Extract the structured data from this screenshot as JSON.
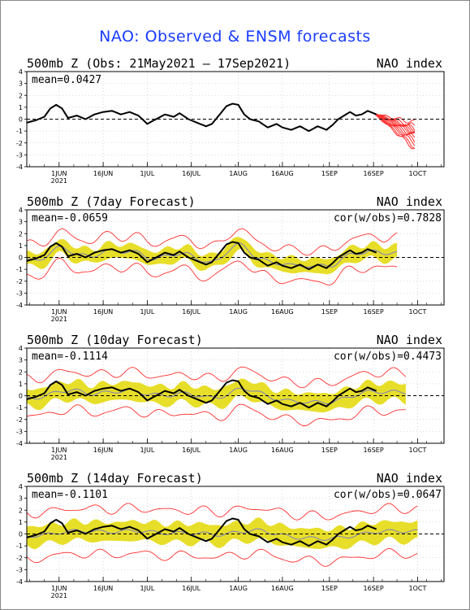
{
  "title": "NAO: Observed & ENSM forecasts",
  "colors": {
    "title": "#1a3cff",
    "observed": "#000000",
    "members": "#ff3030",
    "spread": "#e6dc1e",
    "ens_mean": "#8080c0"
  },
  "chart_data": [
    {
      "type": "line",
      "name": "observed",
      "title_left": "500mb Z (Obs: 21May2021 – 17Sep2021)",
      "title_right": "NAO index",
      "mean_label": "mean=0.0427",
      "cor_label": "",
      "ylim": [
        -4,
        4
      ],
      "yticks": [
        "4",
        "3",
        "2",
        "1",
        "0",
        "-1",
        "-2",
        "-3",
        "-4"
      ],
      "xlim": [
        0,
        142
      ],
      "xtick_labels": [
        "1JUN",
        "16JUN",
        "1JUL",
        "16JUL",
        "1AUG",
        "16AUG",
        "1SEP",
        "16SEP",
        "1OCT"
      ],
      "xtick_pos": [
        11,
        26,
        41,
        56,
        72,
        87,
        103,
        118,
        133
      ],
      "year_label": "2021",
      "observed": {
        "x": [
          0,
          3,
          6,
          8,
          10,
          12,
          14,
          17,
          20,
          23,
          26,
          29,
          32,
          35,
          38,
          41,
          44,
          47,
          50,
          52,
          55,
          58,
          61,
          63,
          66,
          68,
          70,
          72,
          74,
          76,
          79,
          82,
          85,
          87,
          90,
          93,
          96,
          99,
          102,
          104,
          106,
          108,
          110,
          112,
          114,
          116,
          119
        ],
        "y": [
          -0.3,
          -0.1,
          0.2,
          0.9,
          1.2,
          0.9,
          0.1,
          0.3,
          0.0,
          0.4,
          0.6,
          0.7,
          0.4,
          0.6,
          0.3,
          -0.4,
          0.0,
          0.4,
          0.2,
          0.5,
          0.0,
          -0.3,
          -0.6,
          -0.4,
          0.5,
          1.1,
          1.3,
          1.2,
          0.4,
          0.0,
          -0.2,
          -0.7,
          -0.4,
          -0.7,
          -0.9,
          -0.6,
          -1.0,
          -0.6,
          -0.9,
          -0.5,
          0.0,
          0.3,
          0.6,
          0.3,
          0.4,
          0.7,
          0.4
        ]
      },
      "members_start": 118,
      "members_end": 132,
      "members_end_values": [
        -0.3,
        -0.6,
        -0.8,
        -0.9,
        -1.0,
        -1.1,
        -1.2,
        -1.4,
        -1.6,
        -1.8,
        -2.0,
        -2.3,
        -2.5
      ]
    },
    {
      "type": "line",
      "name": "7day",
      "title_left": "500mb Z (7day Forecast)",
      "title_right": "NAO index",
      "mean_label": "mean=-0.0659",
      "cor_label": "cor(w/obs)=0.7828",
      "ylim": [
        -4,
        4
      ],
      "yticks": [
        "4",
        "3",
        "2",
        "1",
        "0",
        "-1",
        "-2",
        "-3",
        "-4"
      ],
      "xlim": [
        0,
        142
      ],
      "xtick_labels": [
        "1JUN",
        "16JUN",
        "1JUL",
        "16JUL",
        "1AUG",
        "16AUG",
        "1SEP",
        "16SEP",
        "1OCT"
      ],
      "xtick_pos": [
        11,
        26,
        41,
        56,
        72,
        87,
        103,
        118,
        133
      ],
      "year_label": "2021",
      "obs_end": 119,
      "forecast_end": 126,
      "spread_width": 0.6,
      "red_width": 1.3,
      "lag": 2,
      "smooth": 0.85
    },
    {
      "type": "line",
      "name": "10day",
      "title_left": "500mb Z (10day Forecast)",
      "title_right": "NAO index",
      "mean_label": "mean=-0.1114",
      "cor_label": "cor(w/obs)=0.4473",
      "ylim": [
        -4,
        4
      ],
      "yticks": [
        "4",
        "3",
        "2",
        "1",
        "0",
        "-1",
        "-2",
        "-3",
        "-4"
      ],
      "xlim": [
        0,
        142
      ],
      "xtick_labels": [
        "1JUN",
        "16JUN",
        "1JUL",
        "16JUL",
        "1AUG",
        "16AUG",
        "1SEP",
        "16SEP",
        "1OCT"
      ],
      "xtick_pos": [
        11,
        26,
        41,
        56,
        72,
        87,
        103,
        118,
        133
      ],
      "year_label": "2021",
      "obs_end": 119,
      "forecast_end": 129,
      "spread_width": 0.75,
      "red_width": 1.6,
      "lag": 4,
      "smooth": 0.55
    },
    {
      "type": "line",
      "name": "14day",
      "title_left": "500mb Z (14day Forecast)",
      "title_right": "NAO index",
      "mean_label": "mean=-0.1101",
      "cor_label": "cor(w/obs)=0.0647",
      "ylim": [
        -4,
        4
      ],
      "yticks": [
        "4",
        "3",
        "2",
        "1",
        "0",
        "-1",
        "-2",
        "-3",
        "-4"
      ],
      "xlim": [
        0,
        142
      ],
      "xtick_labels": [
        "1JUN",
        "16JUN",
        "1JUL",
        "16JUL",
        "1AUG",
        "16AUG",
        "1SEP",
        "16SEP",
        "1OCT"
      ],
      "xtick_pos": [
        11,
        26,
        41,
        56,
        72,
        87,
        103,
        118,
        133
      ],
      "year_label": "2021",
      "obs_end": 119,
      "forecast_end": 133,
      "spread_width": 0.8,
      "red_width": 1.9,
      "lag": 7,
      "smooth": 0.25
    }
  ]
}
